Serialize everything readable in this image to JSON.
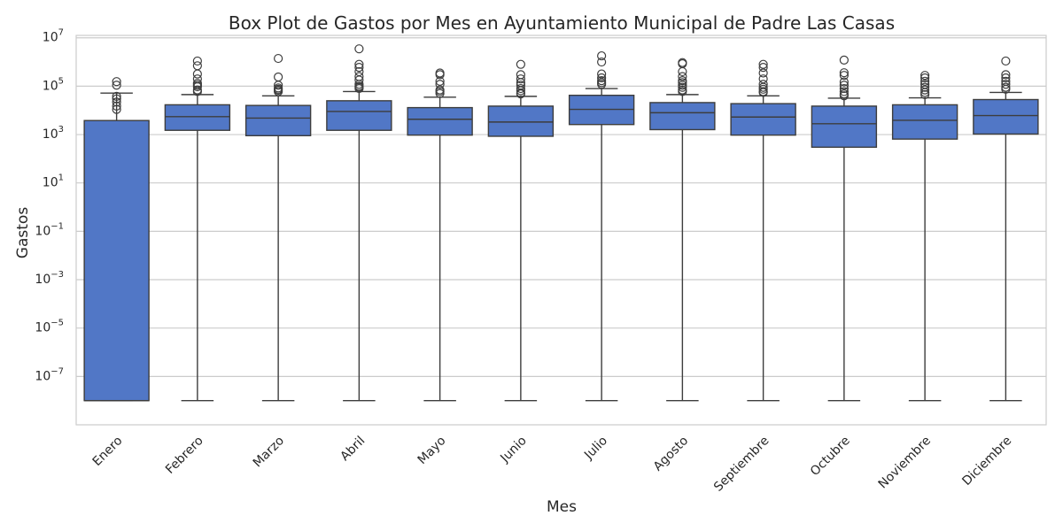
{
  "chart_data": {
    "type": "box",
    "title": "Box Plot de Gastos por Mes en Ayuntamiento Municipal de Padre Las Casas",
    "xlabel": "Mes",
    "ylabel": "Gastos",
    "y_scale": "log",
    "ylim_exponents": [
      -9,
      7.1
    ],
    "grid": true,
    "box_color": "#5177c6",
    "line_color": "#3d3d3d",
    "categories": [
      "Enero",
      "Febrero",
      "Marzo",
      "Abril",
      "Mayo",
      "Junio",
      "Julio",
      "Agosto",
      "Septiembre",
      "Octubre",
      "Noviembre",
      "Diciembre"
    ],
    "y_ticks": [
      {
        "base": "10",
        "exp": "7",
        "value": 7
      },
      {
        "base": "10",
        "exp": "5",
        "value": 5
      },
      {
        "base": "10",
        "exp": "3",
        "value": 3
      },
      {
        "base": "10",
        "exp": "1",
        "value": 1
      },
      {
        "base": "10",
        "exp": "−1",
        "value": -1
      },
      {
        "base": "10",
        "exp": "−3",
        "value": -3
      },
      {
        "base": "10",
        "exp": "−5",
        "value": -5
      },
      {
        "base": "10",
        "exp": "−7",
        "value": -7
      }
    ],
    "boxes": [
      {
        "month": "Enero",
        "min": 1e-08,
        "q1": 1e-08,
        "median": 1e-08,
        "q3": 3800,
        "max": 52000,
        "outliers": [
          110000,
          155000,
          38000,
          30000,
          22000,
          15000,
          11000
        ]
      },
      {
        "month": "Febrero",
        "min": 1e-08,
        "q1": 1500,
        "median": 5500,
        "q3": 17000,
        "max": 45000,
        "outliers": [
          1100000,
          700000,
          320000,
          200000,
          130000,
          110000,
          95000,
          70000,
          60000
        ]
      },
      {
        "month": "Marzo",
        "min": 1e-08,
        "q1": 900,
        "median": 4800,
        "q3": 16000,
        "max": 40000,
        "outliers": [
          1400000,
          240000,
          110000,
          85000,
          75000,
          68000,
          60000
        ]
      },
      {
        "month": "Abril",
        "min": 1e-08,
        "q1": 1500,
        "median": 9000,
        "q3": 25000,
        "max": 60000,
        "outliers": [
          3500000,
          800000,
          600000,
          400000,
          250000,
          180000,
          120000,
          100000,
          90000,
          80000
        ]
      },
      {
        "month": "Mayo",
        "min": 1e-08,
        "q1": 950,
        "median": 4300,
        "q3": 13000,
        "max": 35000,
        "outliers": [
          350000,
          300000,
          160000,
          120000,
          70000,
          60000,
          50000
        ]
      },
      {
        "month": "Junio",
        "min": 1e-08,
        "q1": 850,
        "median": 3300,
        "q3": 15000,
        "max": 38000,
        "outliers": [
          800000,
          300000,
          200000,
          140000,
          110000,
          80000,
          65000,
          52000,
          48000
        ]
      },
      {
        "month": "Julio",
        "min": 1e-08,
        "q1": 2600,
        "median": 11000,
        "q3": 42000,
        "max": 80000,
        "outliers": [
          1800000,
          1000000,
          320000,
          220000,
          170000,
          140000,
          120000
        ]
      },
      {
        "month": "Agosto",
        "min": 1e-08,
        "q1": 1600,
        "median": 8000,
        "q3": 21000,
        "max": 45000,
        "outliers": [
          950000,
          850000,
          400000,
          250000,
          170000,
          140000,
          110000,
          90000,
          70000,
          60000
        ]
      },
      {
        "month": "Septiembre",
        "min": 1e-08,
        "q1": 950,
        "median": 5300,
        "q3": 19000,
        "max": 40000,
        "outliers": [
          800000,
          600000,
          350000,
          200000,
          120000,
          90000,
          75000,
          60000,
          55000
        ]
      },
      {
        "month": "Octubre",
        "min": 1e-08,
        "q1": 300,
        "median": 2800,
        "q3": 15000,
        "max": 32000,
        "outliers": [
          1200000,
          360000,
          280000,
          150000,
          110000,
          80000,
          60000,
          48000,
          40000
        ]
      },
      {
        "month": "Noviembre",
        "min": 1e-08,
        "q1": 650,
        "median": 3900,
        "q3": 17000,
        "max": 33000,
        "outliers": [
          280000,
          220000,
          160000,
          120000,
          90000,
          70000,
          55000,
          45000
        ]
      },
      {
        "month": "Diciembre",
        "min": 1e-08,
        "q1": 1050,
        "median": 6100,
        "q3": 28000,
        "max": 55000,
        "outliers": [
          1100000,
          300000,
          220000,
          160000,
          120000,
          90000,
          75000
        ]
      }
    ]
  }
}
